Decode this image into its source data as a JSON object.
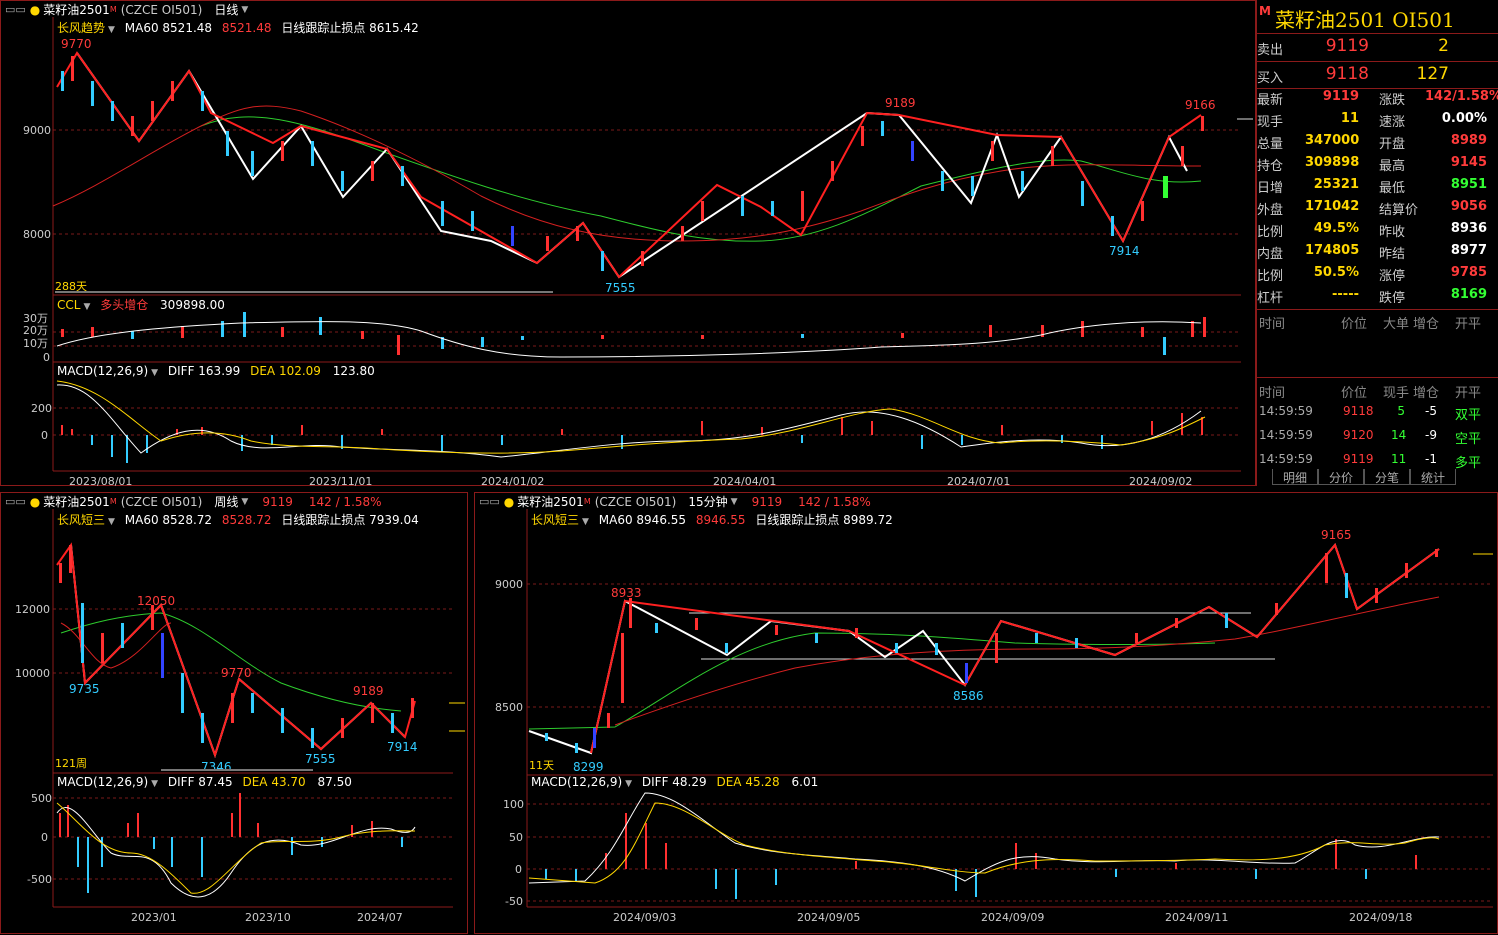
{
  "top_chart": {
    "name": "菜籽油2501",
    "mark": "M",
    "code": "(CZCE OI501)",
    "period": "日线",
    "indicator": "长风趋势",
    "ma60_label": "MA60 8521.48",
    "ma60_red": "8521.48",
    "stop_label": "日线跟踪止损点 8615.42",
    "y_ticks": [
      "9000",
      "8000"
    ],
    "x_ticks": [
      "2023/08/01",
      "2023/11/01",
      "2024/01/02",
      "2024/04/01",
      "2024/07/01",
      "2024/09/02"
    ],
    "peaks": {
      "p1": "9770",
      "p2": "9189",
      "p3": "9166",
      "t1": "7555",
      "t2": "7914"
    },
    "count": "288天",
    "ccl_label": "CCL",
    "ccl_sub": "多头增仓",
    "ccl_value": "309898.00",
    "ccl_ticks": [
      "30万",
      "20万",
      "10万",
      "0"
    ],
    "macd_label": "MACD(12,26,9)",
    "macd_diff": "DIFF 163.99",
    "macd_dea": "DEA 102.09",
    "macd_val": "123.80",
    "macd_ticks": [
      "200",
      "0"
    ]
  },
  "weekly_chart": {
    "name": "菜籽油2501",
    "mark": "M",
    "code": "(CZCE OI501)",
    "period": "周线",
    "price": "9119",
    "change": "142 / 1.58%",
    "indicator": "长风短三",
    "ma60_label": "MA60 8528.72",
    "ma60_red": "8528.72",
    "stop_label": "日线跟踪止损点 7939.04",
    "y_ticks": [
      "12000",
      "10000"
    ],
    "x_ticks": [
      "2023/01",
      "2023/10",
      "2024/07"
    ],
    "peaks": {
      "p1": "12050",
      "p2": "9770",
      "p3": "9189",
      "t1": "9735",
      "t2": "7346",
      "t3": "7555",
      "t4": "7914"
    },
    "count": "121周",
    "macd_label": "MACD(12,26,9)",
    "macd_diff": "DIFF 87.45",
    "macd_dea": "DEA 43.70",
    "macd_val": "87.50",
    "macd_ticks": [
      "500",
      "0",
      "-500"
    ]
  },
  "min15_chart": {
    "name": "菜籽油2501",
    "mark": "M",
    "code": "(CZCE OI501)",
    "period": "15分钟",
    "price": "9119",
    "change": "142 / 1.58%",
    "indicator": "长风短三",
    "ma60_label": "MA60 8946.55",
    "ma60_red": "8946.55",
    "stop_label": "日线跟踪止损点 8989.72",
    "y_ticks": [
      "9000",
      "8500"
    ],
    "x_ticks": [
      "2024/09/03",
      "2024/09/05",
      "2024/09/09",
      "2024/09/11",
      "2024/09/18"
    ],
    "peaks": {
      "p1": "8933",
      "p2": "9165",
      "t1": "8586",
      "t2": "8299"
    },
    "count": "11天",
    "macd_label": "MACD(12,26,9)",
    "macd_diff": "DIFF 48.29",
    "macd_dea": "DEA 45.28",
    "macd_val": "6.01",
    "macd_ticks": [
      "100",
      "50",
      "0",
      "-50"
    ]
  },
  "quote": {
    "mark": "M",
    "title": "菜籽油2501  OI501",
    "sell_label": "卖出",
    "sell_price": "9119",
    "sell_vol": "2",
    "buy_label": "买入",
    "buy_price": "9118",
    "buy_vol": "127",
    "rows": [
      {
        "l1": "最新",
        "v1": "9119",
        "c1": "#ff3b3b",
        "l2": "涨跌",
        "v2": "142/1.58%",
        "c2": "#ff3b3b"
      },
      {
        "l1": "现手",
        "v1": "11",
        "c1": "#ffd700",
        "l2": "速涨",
        "v2": "0.00%",
        "c2": "#ffffff"
      },
      {
        "l1": "总量",
        "v1": "347000",
        "c1": "#ffd700",
        "l2": "开盘",
        "v2": "8989",
        "c2": "#ff3b3b"
      },
      {
        "l1": "持仓",
        "v1": "309898",
        "c1": "#ffd700",
        "l2": "最高",
        "v2": "9145",
        "c2": "#ff3b3b"
      },
      {
        "l1": "日增",
        "v1": "25321",
        "c1": "#ffd700",
        "l2": "最低",
        "v2": "8951",
        "c2": "#33ff33"
      },
      {
        "l1": "外盘",
        "v1": "171042",
        "c1": "#ffd700",
        "l2": "结算价",
        "v2": "9056",
        "c2": "#ff3b3b"
      },
      {
        "l1": "比例",
        "v1": "49.5%",
        "c1": "#ffd700",
        "l2": "昨收",
        "v2": "8936",
        "c2": "#ffffff"
      },
      {
        "l1": "内盘",
        "v1": "174805",
        "c1": "#ffd700",
        "l2": "昨结",
        "v2": "8977",
        "c2": "#ffffff"
      },
      {
        "l1": "比例",
        "v1": "50.5%",
        "c1": "#ffd700",
        "l2": "涨停",
        "v2": "9785",
        "c2": "#ff3b3b"
      },
      {
        "l1": "杠杆",
        "v1": "-----",
        "c1": "#ffd700",
        "l2": "跌停",
        "v2": "8169",
        "c2": "#33ff33"
      }
    ],
    "bigorder_headers": [
      "时间",
      "价位",
      "大单",
      "增仓",
      "开平"
    ],
    "tick_headers": [
      "时间",
      "价位",
      "现手",
      "增仓",
      "开平"
    ],
    "ticks": [
      {
        "time": "14:59:59",
        "price": "9118",
        "vol": "5",
        "oi": "-5",
        "type": "双平"
      },
      {
        "time": "14:59:59",
        "price": "9120",
        "vol": "14",
        "oi": "-9",
        "type": "空平"
      },
      {
        "time": "14:59:59",
        "price": "9119",
        "vol": "11",
        "oi": "-1",
        "type": "多平"
      }
    ],
    "tabs": [
      "明细",
      "分价",
      "分笔",
      "统计"
    ]
  }
}
